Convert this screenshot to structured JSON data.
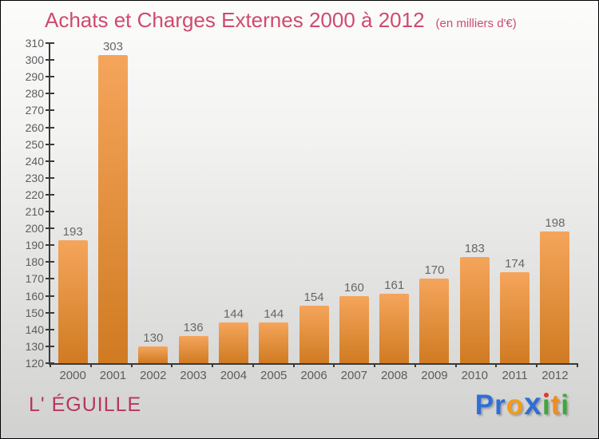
{
  "header": {
    "title": "Achats et Charges Externes 2000 à 2012",
    "subtitle": "(en milliers d'€)",
    "title_color": "#cf4a6e"
  },
  "chart_data": {
    "type": "bar",
    "title": "Achats et Charges Externes 2000 à 2012",
    "subtitle": "(en milliers d'€)",
    "categories": [
      "2000",
      "2001",
      "2002",
      "2003",
      "2004",
      "2005",
      "2006",
      "2007",
      "2008",
      "2009",
      "2010",
      "2011",
      "2012"
    ],
    "values": [
      193,
      303,
      130,
      136,
      144,
      144,
      154,
      160,
      161,
      170,
      183,
      174,
      198
    ],
    "ylim": [
      120,
      310
    ],
    "ytick_step": 10,
    "grid": false,
    "legend_position": "none",
    "bar_gradient_top": "#f5a55b",
    "bar_gradient_bottom": "#d07b22",
    "axis_color": "#3a3a3a",
    "tick_label_color": "#5c5c5c",
    "value_label_color": "#676767"
  },
  "footer": {
    "commune": "L' ÉGUILLE",
    "commune_color": "#b7355f",
    "logo_letters": [
      {
        "char": "P",
        "color": "#2e6fd6"
      },
      {
        "char": "r",
        "color": "#2e6fd6"
      },
      {
        "char": "o",
        "color": "#f39a1c"
      },
      {
        "char": "x",
        "color": "#2e6fd6",
        "style": "x"
      },
      {
        "char": "ı",
        "color": "#3ea83a",
        "dot_color": "#e0392b"
      },
      {
        "char": "t",
        "color": "#f08c1e"
      },
      {
        "char": "i",
        "color": "#3ea83a"
      }
    ]
  }
}
